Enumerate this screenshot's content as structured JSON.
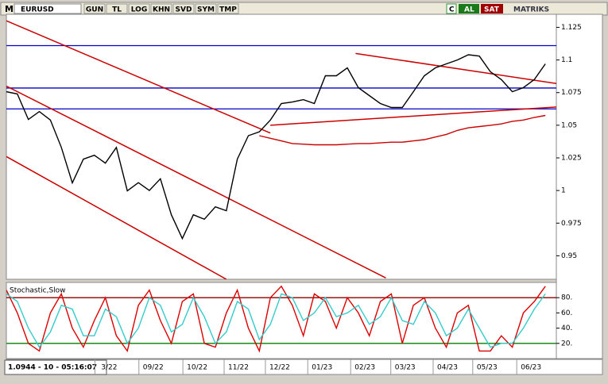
{
  "toolbar": {
    "logo": "M",
    "symbol": "EURUSD",
    "buttons": [
      "GUN",
      "TL",
      "LOG",
      "KHN",
      "SVD",
      "SYM",
      "TMP"
    ],
    "refresh": "C",
    "buy": "AL",
    "sell": "SAT",
    "brand": "MATRIKS"
  },
  "status": "1.0944 - 10 - 05:16:07",
  "chart_data": [
    {
      "type": "line",
      "x": [
        0,
        2,
        4,
        6,
        8,
        10,
        12,
        14,
        16,
        18,
        20,
        22,
        24,
        26,
        28,
        30,
        32,
        34,
        36,
        38,
        40,
        42,
        44,
        46,
        48,
        50,
        52,
        54,
        56,
        58,
        60,
        62,
        64,
        66,
        68,
        70,
        72,
        74,
        76,
        78,
        80,
        82,
        84,
        86,
        88,
        90,
        92,
        94,
        96,
        98
      ],
      "series": [
        {
          "color": "#000000",
          "values": [
            1.0757,
            1.074,
            1.0544,
            1.0605,
            1.054,
            1.033,
            1.0058,
            1.024,
            1.027,
            1.021,
            1.033,
            0.9997,
            1.006,
            1.0,
            1.009,
            0.9814,
            0.9632,
            0.9814,
            0.978,
            0.9875,
            0.9845,
            1.024,
            1.042,
            1.045,
            1.054,
            1.0666,
            1.0678,
            1.0696,
            1.0666,
            1.0879,
            1.0879,
            1.094,
            1.0788,
            1.0727,
            1.0666,
            1.0636,
            1.0636,
            1.0757,
            1.0879,
            1.094,
            1.097,
            1.1,
            1.104,
            1.103,
            1.091,
            1.085,
            1.0757,
            1.0788,
            1.085,
            1.097
          ]
        },
        {
          "color": "#cc0000",
          "values": [
            null,
            null,
            null,
            null,
            null,
            null,
            null,
            null,
            null,
            null,
            null,
            null,
            null,
            null,
            null,
            null,
            null,
            null,
            null,
            null,
            null,
            null,
            null,
            1.042,
            1.04,
            1.038,
            1.036,
            1.0355,
            1.035,
            1.035,
            1.035,
            1.0355,
            1.036,
            1.036,
            1.0365,
            1.037,
            1.037,
            1.038,
            1.039,
            1.041,
            1.043,
            1.046,
            1.048,
            1.049,
            1.05,
            1.051,
            1.053,
            1.054,
            1.056,
            1.0575
          ]
        }
      ],
      "xlim": [
        0,
        100
      ],
      "xticks": [
        {
          "value": 18.7,
          "label": "3/22"
        },
        {
          "value": 26.7,
          "label": "09/22"
        },
        {
          "value": 34.7,
          "label": "10/22"
        },
        {
          "value": 42.2,
          "label": "11/22"
        },
        {
          "value": 49.7,
          "label": "12/22"
        },
        {
          "value": 57.4,
          "label": "01/23"
        },
        {
          "value": 65.2,
          "label": "02/23"
        },
        {
          "value": 72.5,
          "label": "03/23"
        },
        {
          "value": 80.2,
          "label": "04/23"
        },
        {
          "value": 87.4,
          "label": "05/23"
        },
        {
          "value": 95.4,
          "label": "06/23"
        }
      ],
      "ylim": [
        0.932,
        1.135
      ],
      "yticks": [
        0.95,
        0.975,
        1,
        1.025,
        1.05,
        1.075,
        1.1,
        1.125
      ],
      "hlines": [
        1.111,
        1.0785,
        1.0625
      ],
      "hline_color": "#0000c8",
      "trendlines": [
        [
          0,
          1.13,
          48,
          1.044
        ],
        [
          0,
          1.08,
          69,
          0.933
        ],
        [
          0,
          1.026,
          40,
          0.932
        ],
        [
          63.5,
          1.105,
          100,
          1.082
        ],
        [
          48,
          1.05,
          100,
          1.064
        ]
      ],
      "trendline_color": "#cc0000"
    },
    {
      "type": "line",
      "title": "Stochastic,Slow",
      "x": [
        0,
        2,
        4,
        6,
        8,
        10,
        12,
        14,
        16,
        18,
        20,
        22,
        24,
        26,
        28,
        30,
        32,
        34,
        36,
        38,
        40,
        42,
        44,
        46,
        48,
        50,
        52,
        54,
        56,
        58,
        60,
        62,
        64,
        66,
        68,
        70,
        72,
        74,
        76,
        78,
        80,
        82,
        84,
        86,
        88,
        90,
        92,
        94,
        96,
        98
      ],
      "series": [
        {
          "color": "#dd0000",
          "values": [
            90,
            60,
            20,
            10,
            60,
            85,
            40,
            15,
            50,
            80,
            30,
            10,
            70,
            90,
            50,
            20,
            75,
            85,
            20,
            15,
            60,
            90,
            40,
            10,
            80,
            95,
            70,
            30,
            85,
            75,
            40,
            80,
            60,
            30,
            75,
            85,
            20,
            70,
            80,
            40,
            15,
            60,
            70,
            10,
            10,
            30,
            15,
            60,
            75,
            95
          ]
        },
        {
          "color": "#33cccc",
          "values": [
            85,
            75,
            40,
            15,
            35,
            70,
            65,
            30,
            30,
            65,
            55,
            20,
            40,
            80,
            70,
            35,
            45,
            80,
            55,
            20,
            35,
            75,
            65,
            25,
            45,
            85,
            80,
            50,
            60,
            80,
            55,
            60,
            70,
            45,
            55,
            80,
            50,
            45,
            75,
            60,
            30,
            40,
            65,
            40,
            15,
            20,
            20,
            40,
            65,
            85
          ]
        }
      ],
      "xlim": [
        0,
        100
      ],
      "ylim": [
        0,
        100
      ],
      "yticks": [
        {
          "value": 20,
          "label": "20."
        },
        {
          "value": 40,
          "label": "40."
        },
        {
          "value": 60,
          "label": "60."
        },
        {
          "value": 80,
          "label": "80."
        }
      ],
      "hlines": [
        80,
        20
      ],
      "hline_colors": [
        "#8b0000",
        "#008000"
      ]
    }
  ]
}
